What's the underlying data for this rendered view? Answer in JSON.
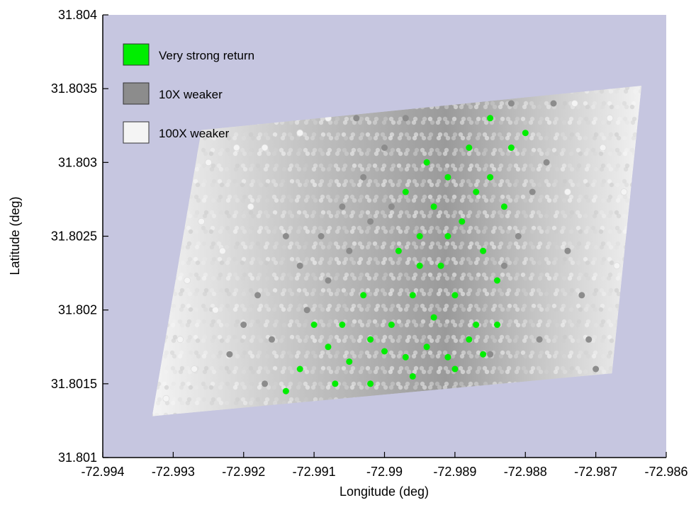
{
  "chart_data": {
    "type": "scatter",
    "title": "",
    "xlabel": "Longitude (deg)",
    "ylabel": "Latitude (deg)",
    "xlim": [
      -72.994,
      -72.986
    ],
    "ylim": [
      31.801,
      31.804
    ],
    "x_ticks": [
      "-72.994",
      "-72.993",
      "-72.992",
      "-72.991",
      "-72.99",
      "-72.989",
      "-72.988",
      "-72.987",
      "-72.986"
    ],
    "y_ticks": [
      "31.801",
      "31.8015",
      "31.802",
      "31.8025",
      "31.803",
      "31.8035",
      "31.804"
    ],
    "grid": false,
    "legend_position": "top-left",
    "background_color": "#c6c6e0",
    "coverage_region": {
      "corners_lon_lat": [
        [
          -72.9933,
          31.80128
        ],
        [
          -72.9926,
          31.80322
        ],
        [
          -72.98635,
          31.80352
        ],
        [
          -72.98677,
          31.80157
        ]
      ]
    },
    "series": [
      {
        "name": "Very strong return",
        "color": "#00ee00",
        "points": [
          [
            -72.9908,
            31.80175
          ],
          [
            -72.9905,
            31.80165
          ],
          [
            -72.9902,
            31.8018
          ],
          [
            -72.99,
            31.80172
          ],
          [
            -72.9897,
            31.80168
          ],
          [
            -72.9894,
            31.80175
          ],
          [
            -72.9891,
            31.80168
          ],
          [
            -72.9888,
            31.8018
          ],
          [
            -72.9886,
            31.8017
          ],
          [
            -72.9899,
            31.8019
          ],
          [
            -72.9893,
            31.80195
          ],
          [
            -72.9896,
            31.8021
          ],
          [
            -72.9892,
            31.8023
          ],
          [
            -72.989,
            31.8021
          ],
          [
            -72.9895,
            31.8025
          ],
          [
            -72.9893,
            31.8027
          ],
          [
            -72.9897,
            31.8028
          ],
          [
            -72.9894,
            31.803
          ],
          [
            -72.9891,
            31.8029
          ],
          [
            -72.9889,
            31.8026
          ],
          [
            -72.9886,
            31.8024
          ],
          [
            -72.9884,
            31.8022
          ],
          [
            -72.9888,
            31.8031
          ],
          [
            -72.9885,
            31.8033
          ],
          [
            -72.9882,
            31.8031
          ],
          [
            -72.988,
            31.8032
          ],
          [
            -72.9885,
            31.8029
          ],
          [
            -72.991,
            31.8019
          ],
          [
            -72.9912,
            31.8016
          ],
          [
            -72.9914,
            31.80145
          ],
          [
            -72.9907,
            31.8015
          ],
          [
            -72.9902,
            31.8015
          ],
          [
            -72.9896,
            31.80155
          ],
          [
            -72.989,
            31.8016
          ],
          [
            -72.9903,
            31.8021
          ],
          [
            -72.9906,
            31.8019
          ],
          [
            -72.9898,
            31.8024
          ],
          [
            -72.9895,
            31.8023
          ],
          [
            -72.9891,
            31.8025
          ],
          [
            -72.9887,
            31.8019
          ],
          [
            -72.9884,
            31.8019
          ],
          [
            -72.9887,
            31.8028
          ],
          [
            -72.9883,
            31.8027
          ]
        ]
      },
      {
        "name": "10X weaker",
        "color": "#8c8c8c",
        "points": [
          [
            -72.9916,
            31.8018
          ],
          [
            -72.9918,
            31.8021
          ],
          [
            -72.9912,
            31.8023
          ],
          [
            -72.9909,
            31.8025
          ],
          [
            -72.9906,
            31.8027
          ],
          [
            -72.9903,
            31.8029
          ],
          [
            -72.99,
            31.8031
          ],
          [
            -72.9897,
            31.8033
          ],
          [
            -72.9902,
            31.8026
          ],
          [
            -72.9905,
            31.8024
          ],
          [
            -72.9908,
            31.8022
          ],
          [
            -72.9911,
            31.802
          ],
          [
            -72.992,
            31.8019
          ],
          [
            -72.9922,
            31.8017
          ],
          [
            -72.9914,
            31.8025
          ],
          [
            -72.9899,
            31.8027
          ],
          [
            -72.9883,
            31.8023
          ],
          [
            -72.9881,
            31.8025
          ],
          [
            -72.9879,
            31.8028
          ],
          [
            -72.9877,
            31.803
          ],
          [
            -72.9882,
            31.8034
          ],
          [
            -72.9876,
            31.8034
          ],
          [
            -72.9872,
            31.8021
          ],
          [
            -72.9871,
            31.8018
          ],
          [
            -72.987,
            31.8016
          ],
          [
            -72.9874,
            31.8024
          ],
          [
            -72.9885,
            31.8017
          ],
          [
            -72.9917,
            31.8015
          ],
          [
            -72.9895,
            31.8035
          ],
          [
            -72.9904,
            31.8033
          ],
          [
            -72.9878,
            31.8018
          ]
        ]
      },
      {
        "name": "100X weaker",
        "color": "#f4f4f4",
        "points": [
          [
            -72.9931,
            31.8014
          ],
          [
            -72.9929,
            31.8018
          ],
          [
            -72.9928,
            31.8022
          ],
          [
            -72.9926,
            31.8026
          ],
          [
            -72.9925,
            31.803
          ],
          [
            -72.9921,
            31.8031
          ],
          [
            -72.9917,
            31.8031
          ],
          [
            -72.9912,
            31.8032
          ],
          [
            -72.9923,
            31.8024
          ],
          [
            -72.9919,
            31.8027
          ],
          [
            -72.9924,
            31.802
          ],
          [
            -72.9868,
            31.8033
          ],
          [
            -72.9866,
            31.8028
          ],
          [
            -72.9867,
            31.8023
          ],
          [
            -72.9869,
            31.8031
          ],
          [
            -72.9873,
            31.8034
          ],
          [
            -72.9866,
            31.8019
          ],
          [
            -72.9874,
            31.8028
          ],
          [
            -72.9927,
            31.8016
          ],
          [
            -72.9908,
            31.8033
          ]
        ]
      }
    ]
  },
  "legend": {
    "items": [
      {
        "label": "Very strong return",
        "color": "#00ee00"
      },
      {
        "label": "10X weaker",
        "color": "#8c8c8c"
      },
      {
        "label": "100X weaker",
        "color": "#f4f4f4"
      }
    ]
  }
}
